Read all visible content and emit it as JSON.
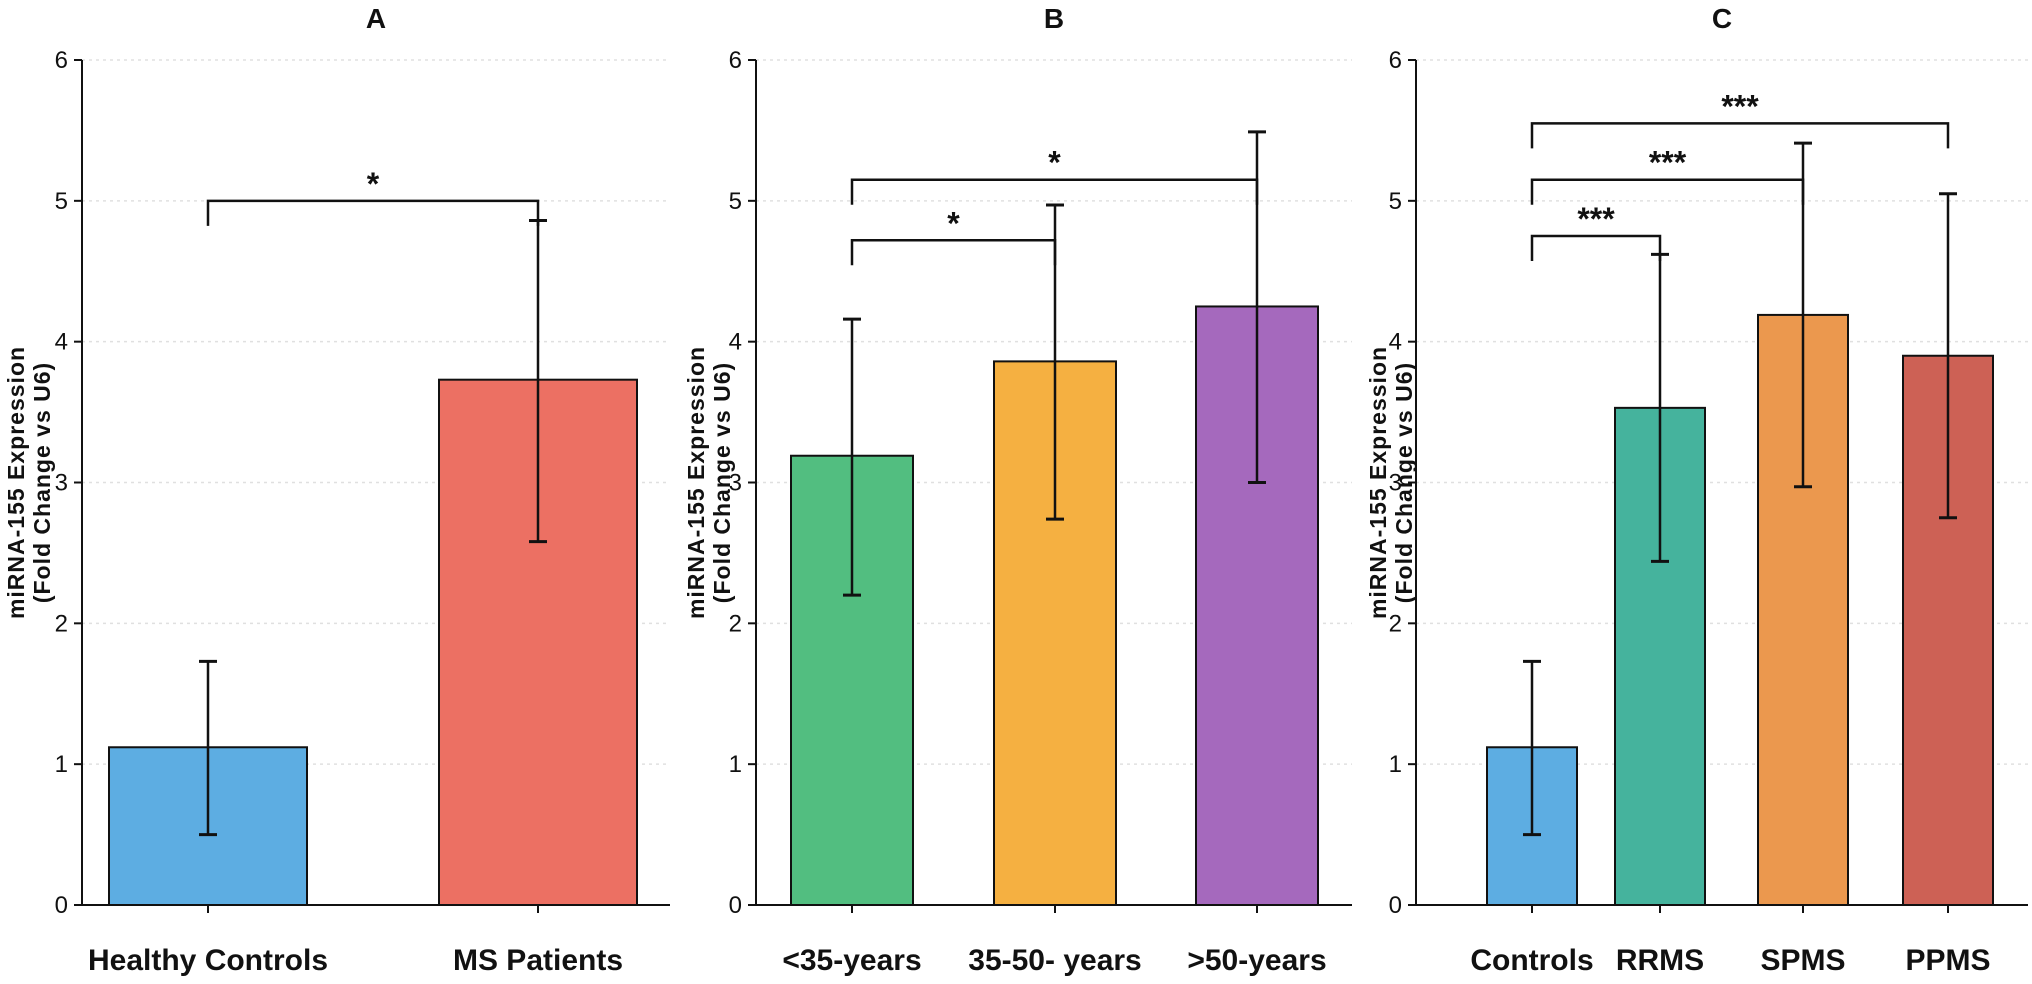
{
  "colors": {
    "blue": "#5dade2",
    "red": "#ec7063",
    "green": "#52be80",
    "yellow": "#f5b041",
    "purple": "#a569bd",
    "teal": "#45b39d",
    "orange": "#eb984e",
    "darkred": "#cd6155",
    "grid": "#e0e0e0",
    "ink": "#111111"
  },
  "chart_data": [
    {
      "type": "bar",
      "title": "A",
      "ylabel": [
        "miRNA-155 Expression",
        "(Fold Change vs U6)"
      ],
      "xlabel": "",
      "ylim": [
        0,
        6
      ],
      "yticks": [
        "0",
        "1",
        "2",
        "3",
        "4",
        "5",
        "6"
      ],
      "grid": "horizontal-dotted",
      "categories": [
        "Healthy Controls",
        "MS Patients"
      ],
      "values": [
        1.12,
        3.73
      ],
      "errors": [
        [
          0.5,
          1.73
        ],
        [
          2.58,
          4.86
        ]
      ],
      "colors": [
        "blue",
        "red"
      ],
      "significance": [
        {
          "from": 0,
          "to": 1,
          "label": "*",
          "y": 5.0
        }
      ]
    },
    {
      "type": "bar",
      "title": "B",
      "ylabel": [
        "miRNA-155 Expression",
        "(Fold Change vs U6)"
      ],
      "xlabel": "",
      "ylim": [
        0,
        6
      ],
      "yticks": [
        "0",
        "1",
        "2",
        "3",
        "4",
        "5",
        "6"
      ],
      "grid": "horizontal-dotted",
      "categories": [
        "<35-years",
        "35-50- years",
        ">50-years"
      ],
      "values": [
        3.19,
        3.86,
        4.25
      ],
      "errors": [
        [
          2.2,
          4.16
        ],
        [
          2.74,
          4.97
        ],
        [
          3.0,
          5.49
        ]
      ],
      "colors": [
        "green",
        "yellow",
        "purple"
      ],
      "significance": [
        {
          "from": 0,
          "to": 1,
          "label": "*",
          "y": 4.72
        },
        {
          "from": 0,
          "to": 2,
          "label": "*",
          "y": 5.15
        }
      ]
    },
    {
      "type": "bar",
      "title": "C",
      "ylabel": [
        "miRNA-155 Expression",
        "(Fold Change vs U6)"
      ],
      "xlabel": "",
      "ylim": [
        0,
        6
      ],
      "yticks": [
        "0",
        "1",
        "2",
        "3",
        "4",
        "5",
        "6"
      ],
      "grid": "horizontal-dotted",
      "categories": [
        "Controls",
        "RRMS",
        "SPMS",
        "PPMS"
      ],
      "values": [
        1.12,
        3.53,
        4.19,
        3.9
      ],
      "errors": [
        [
          0.5,
          1.73
        ],
        [
          2.44,
          4.62
        ],
        [
          2.97,
          5.41
        ],
        [
          2.75,
          5.05
        ]
      ],
      "colors": [
        "blue",
        "teal",
        "orange",
        "darkred"
      ],
      "significance": [
        {
          "from": 0,
          "to": 1,
          "label": "***",
          "y": 4.75
        },
        {
          "from": 0,
          "to": 2,
          "label": "***",
          "y": 5.15
        },
        {
          "from": 0,
          "to": 3,
          "label": "***",
          "y": 5.55
        }
      ]
    }
  ]
}
